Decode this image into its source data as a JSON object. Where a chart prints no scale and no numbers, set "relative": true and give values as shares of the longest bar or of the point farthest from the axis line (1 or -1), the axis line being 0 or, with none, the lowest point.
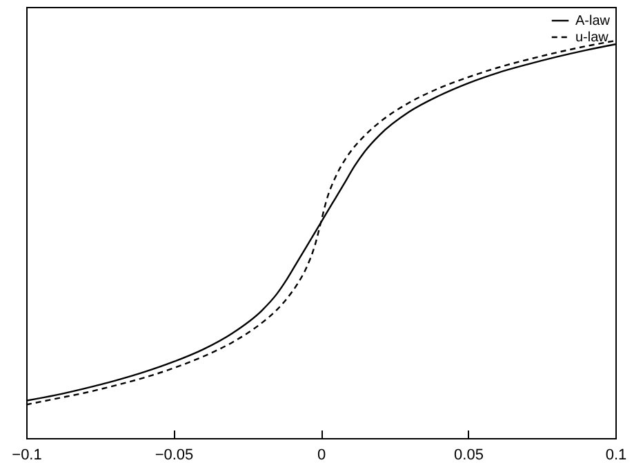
{
  "chart_data": {
    "type": "line",
    "relative": true,
    "legend": "top right",
    "grid": false,
    "x": [
      -0.1,
      -0.09,
      -0.08,
      -0.07,
      -0.06,
      -0.05,
      -0.04,
      -0.03,
      -0.02,
      -0.015,
      -0.0114,
      -0.008,
      -0.005,
      -0.002,
      0,
      0.002,
      0.005,
      0.008,
      0.0114,
      0.015,
      0.02,
      0.03,
      0.04,
      0.05,
      0.06,
      0.07,
      0.08,
      0.09,
      0.1
    ],
    "xlim": [
      -0.1,
      0.1
    ],
    "xticks": [
      -0.1,
      -0.05,
      0,
      0.05,
      0.1
    ],
    "series": [
      {
        "name": "A-law",
        "color": "#000000",
        "line_style": "solid",
        "values": [
          0.094,
          0.108,
          0.125,
          0.144,
          0.166,
          0.192,
          0.223,
          0.264,
          0.321,
          0.362,
          0.401,
          0.443,
          0.48,
          0.517,
          0.542,
          0.567,
          0.604,
          0.641,
          0.684,
          0.722,
          0.763,
          0.821,
          0.861,
          0.893,
          0.919,
          0.94,
          0.959,
          0.976,
          0.991
        ]
      },
      {
        "name": "u-law",
        "color": "#000000",
        "line_style": "dashed",
        "values": [
          0.084,
          0.099,
          0.114,
          0.132,
          0.152,
          0.176,
          0.205,
          0.241,
          0.29,
          0.322,
          0.352,
          0.387,
          0.427,
          0.485,
          0.542,
          0.6,
          0.657,
          0.698,
          0.733,
          0.762,
          0.795,
          0.844,
          0.88,
          0.908,
          0.932,
          0.952,
          0.97,
          0.986,
          1.0
        ]
      }
    ]
  }
}
